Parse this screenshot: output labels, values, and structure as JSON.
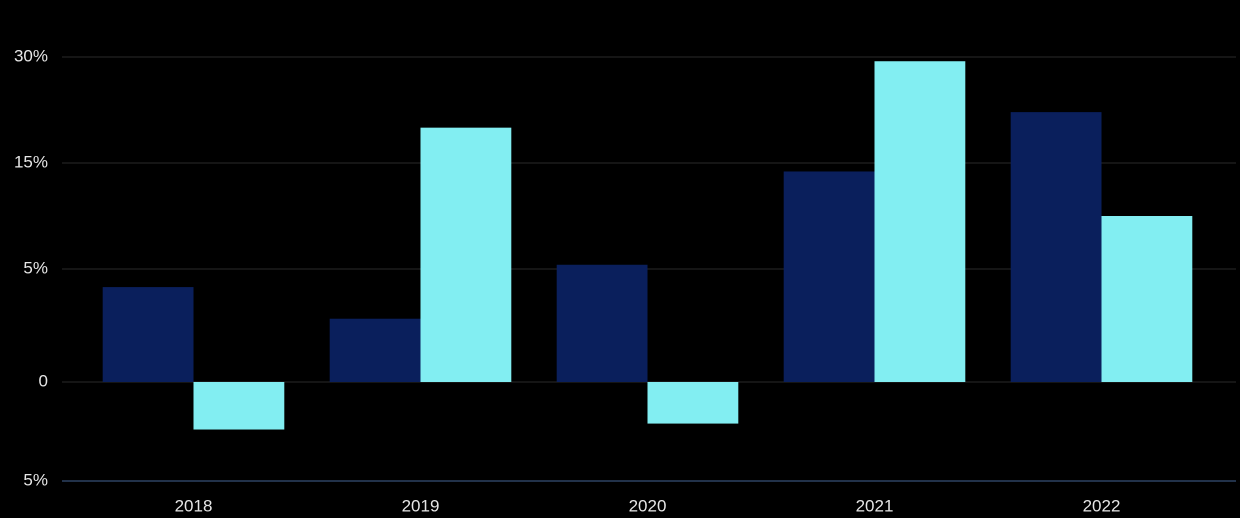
{
  "chart_data": {
    "type": "bar",
    "categories": [
      "2018",
      "2019",
      "2020",
      "2021",
      "2022"
    ],
    "series": [
      {
        "color": "#0a1f5c",
        "values": [
          4.2,
          2.8,
          5.4,
          14.2,
          22.2
        ]
      },
      {
        "color": "#82eef2",
        "values": [
          -2.4,
          20,
          -2.1,
          29.4,
          10
        ]
      }
    ],
    "ylim": [
      -5,
      30
    ],
    "yticks": [
      {
        "value": 30,
        "label": "30%"
      },
      {
        "value": 15,
        "label": "15%"
      },
      {
        "value": 5,
        "label": "5%"
      },
      0,
      {
        "value": -5,
        "label": "5%"
      }
    ],
    "grid": true
  }
}
